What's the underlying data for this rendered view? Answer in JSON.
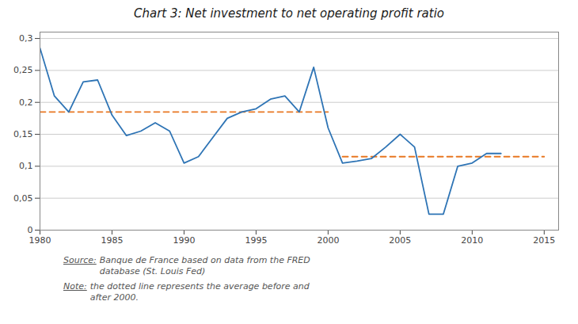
{
  "chart_data": {
    "type": "line",
    "title": "Chart 3: Net investment to net operating profit ratio",
    "x": [
      1980,
      1981,
      1982,
      1983,
      1984,
      1985,
      1986,
      1987,
      1988,
      1989,
      1990,
      1991,
      1992,
      1993,
      1994,
      1995,
      1996,
      1997,
      1998,
      1999,
      2000,
      2001,
      2002,
      2003,
      2004,
      2005,
      2006,
      2007,
      2008,
      2009,
      2010,
      2011,
      2012
    ],
    "series": [
      {
        "color": "#2E74B5",
        "line_style": "solid",
        "values": [
          0.285,
          0.21,
          0.185,
          0.232,
          0.235,
          0.18,
          0.148,
          0.155,
          0.168,
          0.155,
          0.105,
          0.115,
          0.145,
          0.175,
          0.185,
          0.19,
          0.205,
          0.21,
          0.185,
          0.255,
          0.16,
          0.105,
          0.108,
          0.112,
          0.13,
          0.15,
          0.13,
          0.025,
          0.025,
          0.1,
          0.105,
          0.12,
          0.12
        ]
      },
      {
        "color": "#E87722",
        "line_style": "dashed",
        "x": [
          1980,
          2000
        ],
        "values": [
          0.185,
          0.185
        ]
      },
      {
        "color": "#E87722",
        "line_style": "dashed",
        "x": [
          2001,
          2015
        ],
        "values": [
          0.115,
          0.115
        ]
      }
    ],
    "xlim": [
      1980,
      2016
    ],
    "xticks": [
      1980,
      1985,
      1990,
      1995,
      2000,
      2005,
      2010,
      2015
    ],
    "ylim": [
      0,
      0.31
    ],
    "yticks": [
      0,
      {
        "value": 0.05,
        "label": "0,05"
      },
      {
        "value": 0.1,
        "label": "0,1"
      },
      {
        "value": 0.15,
        "label": "0,15"
      },
      {
        "value": 0.2,
        "label": "0,2"
      },
      {
        "value": 0.25,
        "label": "0,25"
      },
      {
        "value": 0.3,
        "label": "0,3"
      }
    ],
    "grid": "y",
    "annotations": [
      {
        "label": "Source:",
        "text": "Banque de France based on data from the FRED\ndatabase (St. Louis Fed)"
      },
      {
        "label": "Note:",
        "text": "the dotted line represents the average before and\nafter 2000."
      }
    ]
  }
}
